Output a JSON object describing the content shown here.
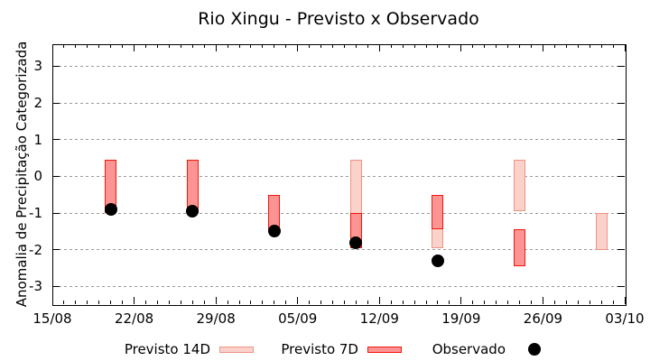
{
  "header": {
    "title": "Rio Xingu - Previsto x Observado"
  },
  "chart_data": {
    "type": "bar",
    "subtype": "range-bars-with-scatter",
    "title": "Rio Xingu - Previsto x Observado",
    "xlabel": "",
    "ylabel": "Anomalia de Precipitação Categorizada",
    "ylim": [
      -3.48,
      3.6
    ],
    "y_ticks": [
      3,
      2,
      1,
      0,
      -1,
      -2,
      -3
    ],
    "x_tick_labels": [
      "15/08",
      "22/08",
      "29/08",
      "05/09",
      "12/09",
      "19/09",
      "26/09",
      "03/10"
    ],
    "x_total_days": 49,
    "x_minor_tick_every_days": 1,
    "grid": "horizontal-dashed",
    "legend_position": "bottom",
    "colors": {
      "previsto_14d_fill": "#fbd2ca",
      "previsto_14d_border": "#ef9384",
      "previsto_7d_fill": "#fc9494",
      "previsto_7d_border": "#f01808",
      "observado": "#000000",
      "grid": "#9a9a9a",
      "axis": "#000000"
    },
    "series": [
      {
        "name": "Previsto 14D",
        "type": "range-bar",
        "points": [
          {
            "date": "10/09",
            "day": 26,
            "low": -1.95,
            "high": 0.45
          },
          {
            "date": "17/09",
            "day": 33,
            "low": -1.95,
            "high": -0.5
          },
          {
            "date": "24/09",
            "day": 40,
            "low": -0.95,
            "high": 0.45
          },
          {
            "date": "01/10",
            "day": 47,
            "low": -2.0,
            "high": -1.0
          }
        ]
      },
      {
        "name": "Previsto 7D",
        "type": "range-bar",
        "points": [
          {
            "date": "20/08",
            "day": 5,
            "low": -1.0,
            "high": 0.45
          },
          {
            "date": "27/08",
            "day": 12,
            "low": -1.0,
            "high": 0.45
          },
          {
            "date": "03/09",
            "day": 19,
            "low": -1.5,
            "high": -0.5
          },
          {
            "date": "10/09",
            "day": 26,
            "low": -1.95,
            "high": -1.0
          },
          {
            "date": "17/09",
            "day": 33,
            "low": -1.45,
            "high": -0.5
          },
          {
            "date": "24/09",
            "day": 40,
            "low": -2.45,
            "high": -1.45
          }
        ]
      },
      {
        "name": "Observado",
        "type": "scatter",
        "points": [
          {
            "date": "20/08",
            "day": 5,
            "value": -0.9
          },
          {
            "date": "27/08",
            "day": 12,
            "value": -0.95
          },
          {
            "date": "03/09",
            "day": 19,
            "value": -1.5
          },
          {
            "date": "10/09",
            "day": 26,
            "value": -1.8
          },
          {
            "date": "17/09",
            "day": 33,
            "value": -2.3
          }
        ]
      }
    ],
    "legend": [
      {
        "label": "Previsto 14D",
        "swatch": "box-light"
      },
      {
        "label": "Previsto 7D",
        "swatch": "box-dark"
      },
      {
        "label": "Observado",
        "swatch": "dot"
      }
    ]
  }
}
